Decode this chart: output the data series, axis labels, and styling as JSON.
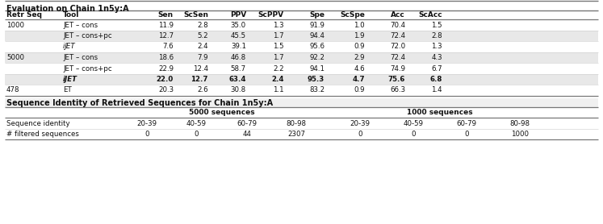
{
  "title1": "Evaluation on Chain 1n5y:A",
  "title2": "Sequence Identity of Retrieved Sequences for Chain 1n5y:A",
  "headers": [
    "Retr Seq",
    "Tool",
    "Sen",
    "ScSen",
    "PPV",
    "ScPPV",
    "Spe",
    "ScSpe",
    "Acc",
    "ScAcc"
  ],
  "rows": [
    [
      "1000",
      "JET - cons",
      "11.9",
      "2.8",
      "35.0",
      "1.3",
      "91.9",
      "1.0",
      "70.4",
      "1.5"
    ],
    [
      "",
      "JET - cons+pc",
      "12.7",
      "5.2",
      "45.5",
      "1.7",
      "94.4",
      "1.9",
      "72.4",
      "2.8"
    ],
    [
      "",
      "iJET",
      "7.6",
      "2.4",
      "39.1",
      "1.5",
      "95.6",
      "0.9",
      "72.0",
      "1.3"
    ],
    [
      "5000",
      "JET - cons",
      "18.6",
      "7.9",
      "46.8",
      "1.7",
      "92.2",
      "2.9",
      "72.4",
      "4.3"
    ],
    [
      "",
      "JET - cons+pc",
      "22.9",
      "12.4",
      "58.7",
      "2.2",
      "94.1",
      "4.6",
      "74.9",
      "6.7"
    ],
    [
      "",
      "iJET",
      "22.0",
      "12.7",
      "63.4",
      "2.4",
      "95.3",
      "4.7",
      "75.6",
      "6.8"
    ],
    [
      "478",
      "ET",
      "20.3",
      "2.6",
      "30.8",
      "1.1",
      "83.2",
      "0.9",
      "66.3",
      "1.4"
    ]
  ],
  "bold_row": 5,
  "shaded_rows": [
    1,
    3,
    5
  ],
  "italic_tool": "iJET",
  "t2_group_headers": [
    "5000 sequences",
    "1000 sequences"
  ],
  "t2_seq_labels": [
    "20-39",
    "40-59",
    "60-79",
    "80-98"
  ],
  "t2_row1_label": "Sequence identity",
  "t2_row2_label": "# filtered sequences",
  "t2_5k_vals": [
    "0",
    "0",
    "44",
    "2307"
  ],
  "t2_1k_vals": [
    "0",
    "0",
    "0",
    "1000"
  ],
  "shaded_color": "#e8e8e8",
  "line_color": "#aaaaaa",
  "thick_line_color": "#777777",
  "text_color": "#111111",
  "title_fs": 7.0,
  "header_fs": 6.5,
  "row_fs": 6.2
}
